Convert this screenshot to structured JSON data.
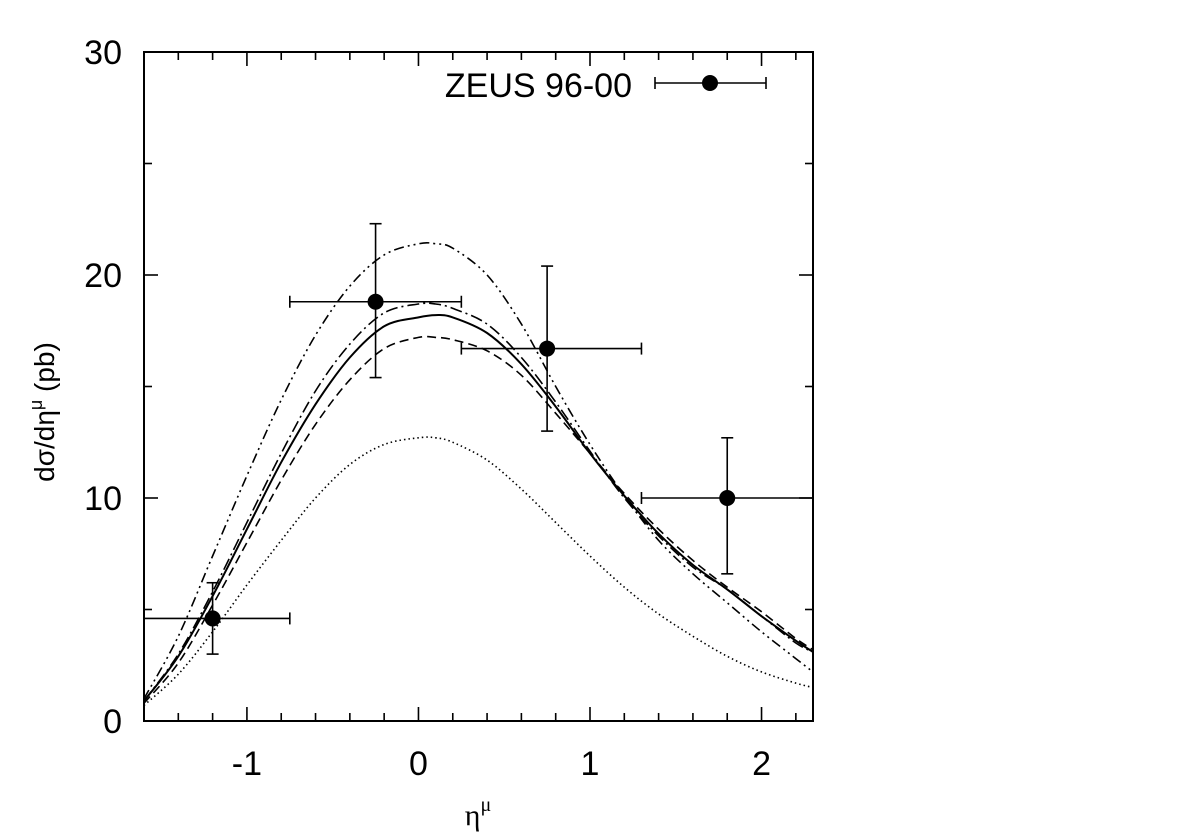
{
  "chart_data": {
    "type": "line",
    "xlabel": "η^μ",
    "ylabel": "dσ/dη^μ (pb)",
    "xlim": [
      -1.6,
      2.3
    ],
    "ylim": [
      0,
      30
    ],
    "x_ticks": [
      -1,
      0,
      1,
      2
    ],
    "y_ticks": [
      0,
      10,
      20,
      30
    ],
    "legend_position": "top-right",
    "grid": false,
    "measurements": {
      "name": "ZEUS 96-00",
      "points": [
        {
          "x": -1.2,
          "y": 4.6,
          "xerr": [
            0.4,
            0.45
          ],
          "yerr": [
            1.6,
            1.6
          ]
        },
        {
          "x": -0.25,
          "y": 18.8,
          "xerr": [
            0.5,
            0.5
          ],
          "yerr": [
            3.4,
            3.5
          ]
        },
        {
          "x": 0.75,
          "y": 16.7,
          "xerr": [
            0.5,
            0.55
          ],
          "yerr": [
            3.7,
            3.7
          ]
        },
        {
          "x": 1.8,
          "y": 10.0,
          "xerr": [
            0.5,
            0.5
          ],
          "yerr": [
            3.4,
            2.7
          ]
        }
      ]
    },
    "curves": [
      {
        "style": "solid",
        "x": [
          -1.6,
          -1.4,
          -1.2,
          -1.0,
          -0.8,
          -0.6,
          -0.4,
          -0.2,
          0.0,
          0.1,
          0.2,
          0.4,
          0.6,
          0.8,
          1.0,
          1.2,
          1.4,
          1.6,
          1.8,
          2.0,
          2.2,
          2.3
        ],
        "y": [
          0.9,
          2.9,
          5.6,
          8.6,
          11.6,
          14.2,
          16.3,
          17.7,
          18.1,
          18.2,
          18.1,
          17.4,
          16.0,
          14.1,
          12.0,
          10.1,
          8.4,
          7.0,
          5.9,
          4.7,
          3.6,
          3.1
        ]
      },
      {
        "style": "dashed",
        "x": [
          -1.6,
          -1.4,
          -1.2,
          -1.0,
          -0.8,
          -0.6,
          -0.4,
          -0.2,
          0.0,
          0.1,
          0.2,
          0.4,
          0.6,
          0.8,
          1.0,
          1.2,
          1.4,
          1.6,
          1.8,
          2.0,
          2.2,
          2.3
        ],
        "y": [
          0.8,
          2.6,
          5.2,
          8.0,
          10.8,
          13.3,
          15.3,
          16.7,
          17.2,
          17.2,
          17.1,
          16.6,
          15.5,
          13.8,
          12.0,
          10.2,
          8.6,
          7.2,
          6.0,
          4.9,
          3.7,
          3.2
        ]
      },
      {
        "style": "dash-dot",
        "x": [
          -1.6,
          -1.4,
          -1.2,
          -1.0,
          -0.8,
          -0.6,
          -0.4,
          -0.2,
          0.0,
          0.1,
          0.2,
          0.4,
          0.6,
          0.8,
          1.0,
          1.2,
          1.4,
          1.6,
          1.8,
          2.0,
          2.2,
          2.3
        ],
        "y": [
          0.9,
          3.0,
          5.8,
          8.9,
          12.0,
          14.8,
          16.9,
          18.3,
          18.7,
          18.7,
          18.5,
          17.8,
          16.3,
          14.3,
          12.1,
          10.0,
          8.3,
          6.9,
          5.9,
          4.7,
          3.5,
          3.1
        ]
      },
      {
        "style": "dash-dot-dot",
        "x": [
          -1.6,
          -1.4,
          -1.2,
          -1.0,
          -0.8,
          -0.6,
          -0.4,
          -0.2,
          0.0,
          0.1,
          0.2,
          0.4,
          0.6,
          0.8,
          1.0,
          1.2,
          1.4,
          1.6,
          1.8,
          2.0,
          2.2,
          2.3
        ],
        "y": [
          1.0,
          3.8,
          7.4,
          11.0,
          14.4,
          17.3,
          19.5,
          20.9,
          21.4,
          21.4,
          21.2,
          20.0,
          17.8,
          15.0,
          12.4,
          10.1,
          8.1,
          6.6,
          5.3,
          4.0,
          2.8,
          2.2
        ]
      },
      {
        "style": "dotted",
        "x": [
          -1.6,
          -1.4,
          -1.2,
          -1.0,
          -0.8,
          -0.6,
          -0.4,
          -0.2,
          0.0,
          0.1,
          0.2,
          0.4,
          0.6,
          0.8,
          1.0,
          1.2,
          1.4,
          1.6,
          1.8,
          2.0,
          2.2,
          2.3
        ],
        "y": [
          0.7,
          2.1,
          4.0,
          6.1,
          8.1,
          10.0,
          11.5,
          12.4,
          12.7,
          12.7,
          12.5,
          11.7,
          10.4,
          8.9,
          7.4,
          6.0,
          4.8,
          3.8,
          2.9,
          2.2,
          1.7,
          1.5
        ]
      }
    ]
  }
}
